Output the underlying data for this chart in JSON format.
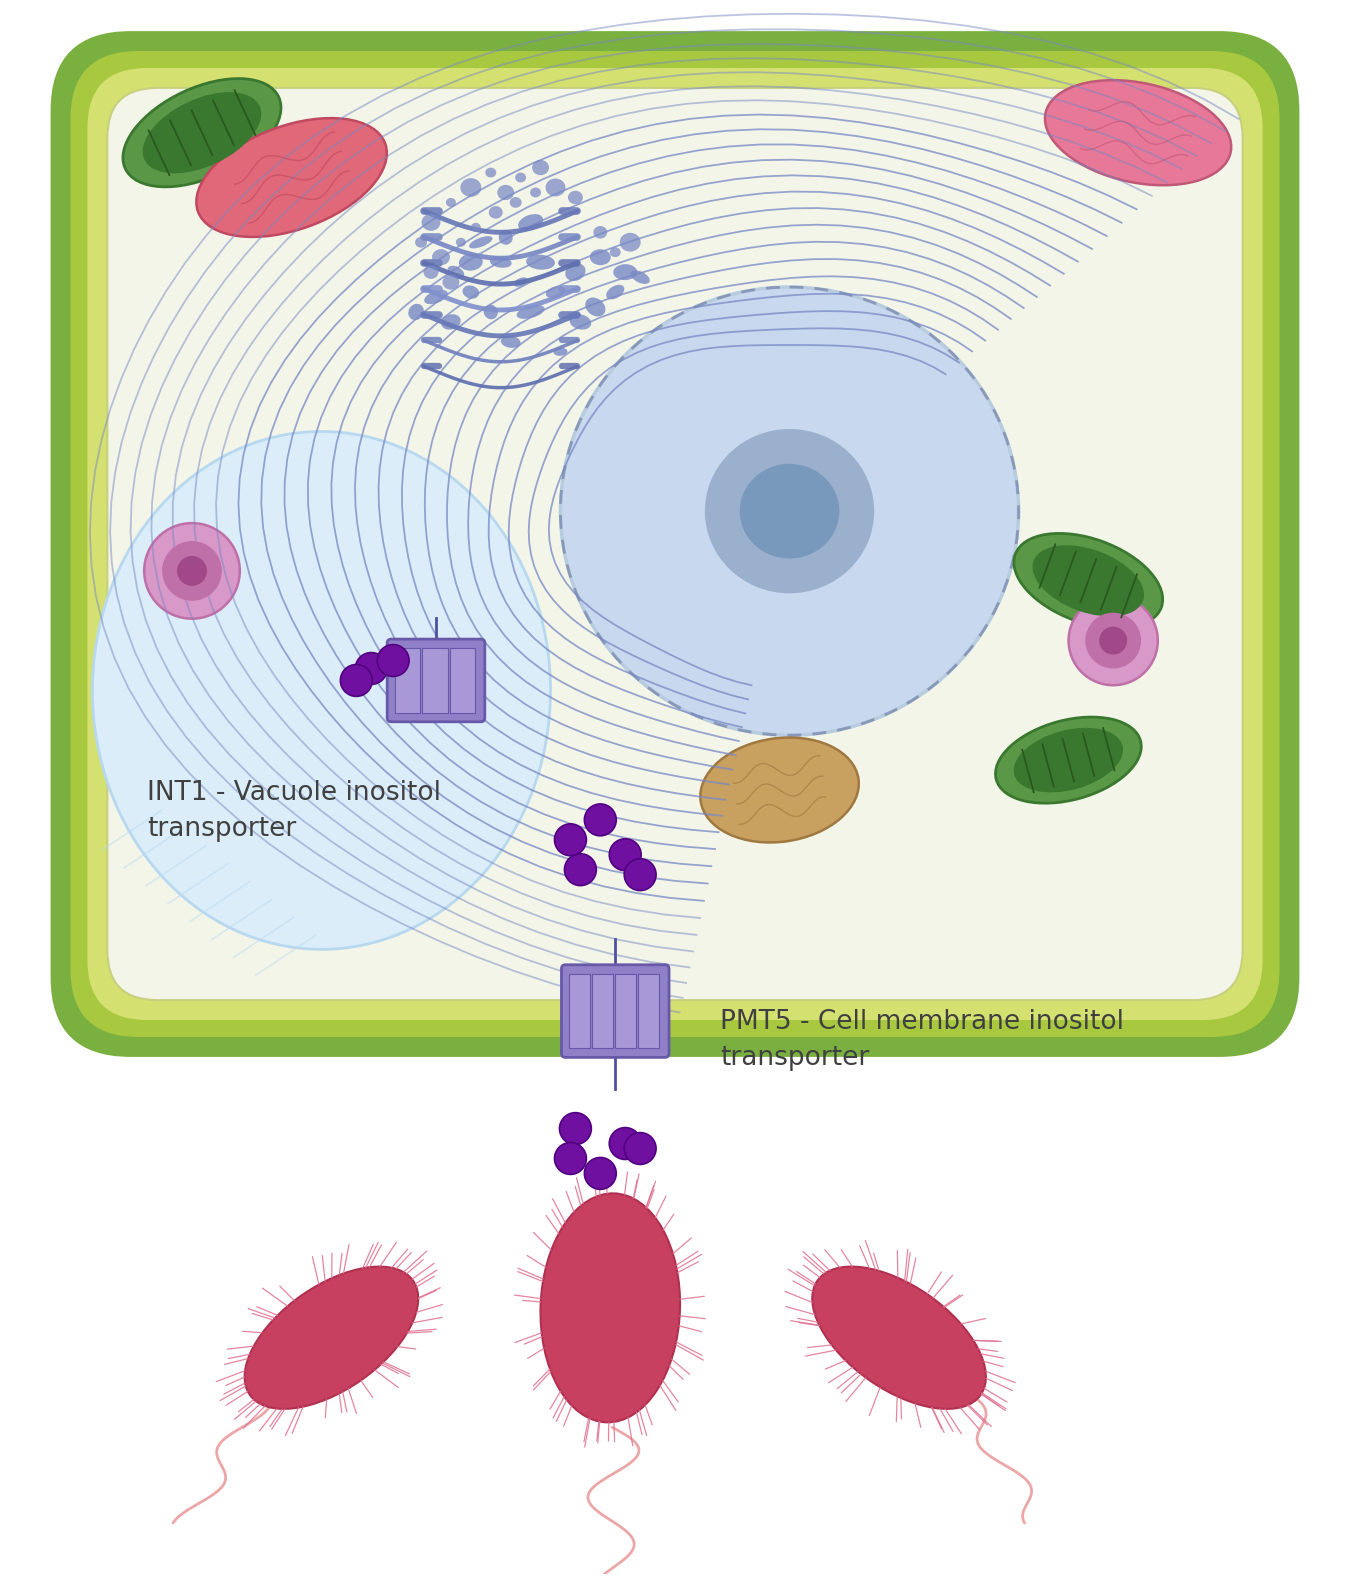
{
  "fig_width": 13.5,
  "fig_height": 15.77,
  "bg_color": "#ffffff",
  "cell_wall_outer": "#7ab040",
  "cell_wall_mid": "#a8c840",
  "cell_wall_inner": "#d4e070",
  "cell_interior": "#f2f5e8",
  "vacuole_fill": "#daedf8",
  "vacuole_edge": "#b8d8f0",
  "nucleus_fill": "#c8d8ee",
  "nucleus_inner_fill": "#b8cce0",
  "nucleus_core": "#a0b8d4",
  "er_color": "#7888c4",
  "chloro_dark": "#3a7830",
  "chloro_mid": "#5a9848",
  "mito_pink": "#e06878",
  "mito_pink_edge": "#c04860",
  "mito_brown": "#c8a060",
  "mito_brown_edge": "#a07840",
  "perox_outer": "#d898c8",
  "perox_mid": "#c070a8",
  "perox_inner": "#a04888",
  "trans_fill": "#9080c8",
  "trans_seg": "#a898d8",
  "trans_edge": "#6858a8",
  "inositol_fill": "#7010a0",
  "inositol_edge": "#500080",
  "bact_fill": "#c84060",
  "bact_edge": "#b03050",
  "bact_fuzz": "#e07090",
  "flagella_col": "#e89898",
  "label_col": "#404040",
  "INT1_label": "INT1 - Vacuole inositol\ntransporter",
  "PMT5_label": "PMT5 - Cell membrane inositol\ntransporter"
}
